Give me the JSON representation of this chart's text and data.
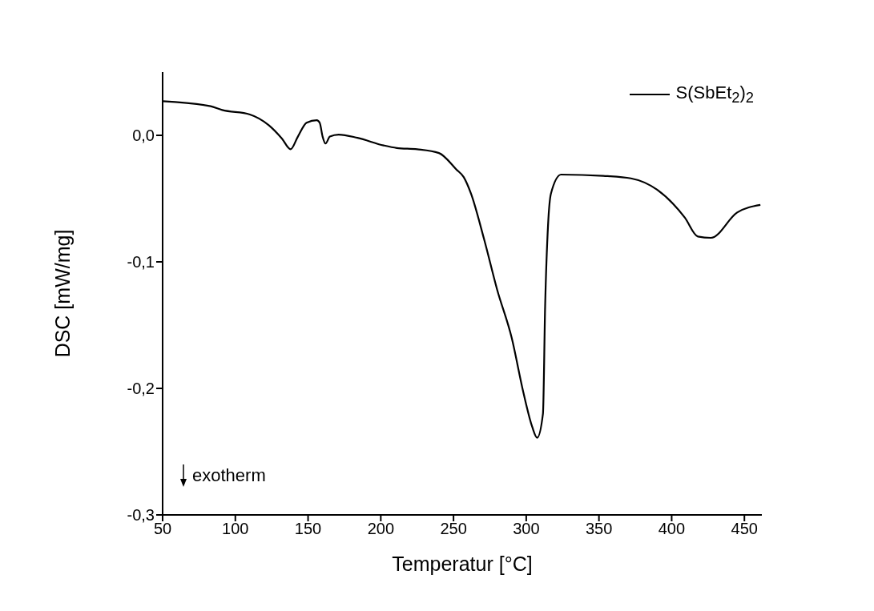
{
  "chart_data": {
    "type": "line",
    "xlabel": "Temperatur [°C]",
    "ylabel": "DSC [mW/mg]",
    "xlim": [
      50,
      462
    ],
    "xticks": [
      50,
      100,
      150,
      200,
      250,
      300,
      350,
      400,
      450
    ],
    "ylim": [
      -0.3,
      0.05
    ],
    "yticks": [
      {
        "value": 0,
        "label": "0,0"
      },
      {
        "value": -0.1,
        "label": "-0,1"
      },
      {
        "value": -0.2,
        "label": "-0,2"
      },
      {
        "value": -0.3,
        "label": "-0,3"
      }
    ],
    "grid": false,
    "legend": "top right",
    "marker": "none",
    "line_style": "solid",
    "annotations": [
      "exotherm"
    ],
    "series": [
      {
        "name": "S(SbEt$_{2}$)$_{2}$",
        "color": "#000000",
        "x": [
          50,
          83,
          91,
          110,
          123,
          132,
          138,
          143,
          149,
          156,
          158,
          160,
          162,
          165,
          171,
          184,
          202,
          211,
          225,
          240,
          252,
          257,
          262,
          271,
          280,
          290,
          298,
          304,
          307.5,
          311.5,
          313,
          315,
          317,
          324,
          353,
          372,
          390,
          409,
          418,
          427,
          445,
          461
        ],
        "values": [
          0.027,
          0.023,
          0.02,
          0.0165,
          0.008,
          -0.0025,
          -0.011,
          -0.001,
          0.01,
          0.012,
          0.01,
          -0.001,
          -0.0065,
          -0.001,
          0.0006,
          -0.002,
          -0.008,
          -0.01,
          -0.011,
          -0.014,
          -0.027,
          -0.033,
          -0.046,
          -0.082,
          -0.122,
          -0.16,
          -0.203,
          -0.23,
          -0.239,
          -0.22,
          -0.135,
          -0.071,
          -0.046,
          -0.031,
          -0.032,
          -0.034,
          -0.043,
          -0.065,
          -0.08,
          -0.081,
          -0.061,
          -0.055
        ]
      }
    ]
  }
}
